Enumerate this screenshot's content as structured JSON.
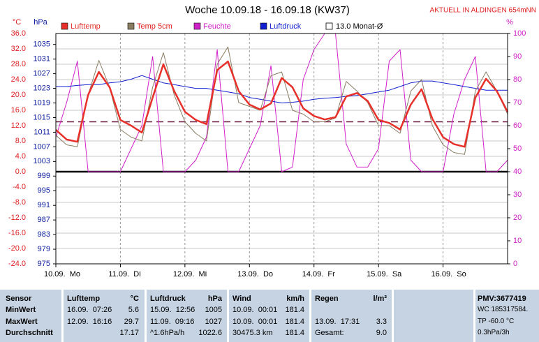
{
  "title": "Woche 10.09.18 - 16.09.18 (KW37)",
  "station": "AKTUELL IN ALDINGEN 654mNN",
  "chart_data": {
    "type": "line",
    "y_label": "°C",
    "y2_label": "hPa",
    "y3_label": "%",
    "x": [
      0,
      4,
      8,
      12,
      16,
      20,
      24,
      28,
      32,
      36,
      40,
      44,
      48,
      52,
      56,
      60,
      64,
      68,
      72,
      76,
      80,
      84,
      88,
      92,
      96,
      100,
      104,
      108,
      112,
      116,
      120,
      124,
      128,
      132,
      136,
      140,
      144,
      148,
      152,
      156,
      160,
      164,
      168
    ],
    "xlim": [
      0,
      168
    ],
    "xticks": [
      {
        "value": 0,
        "label": "10.09.  Mo"
      },
      {
        "value": 24,
        "label": "11.09.  Di"
      },
      {
        "value": 48,
        "label": "12.09.  Mi"
      },
      {
        "value": 72,
        "label": "13.09.  Do"
      },
      {
        "value": 96,
        "label": "14.09.  Fr"
      },
      {
        "value": 120,
        "label": "15.09.  Sa"
      },
      {
        "value": 144,
        "label": "16.09.  So"
      }
    ],
    "ylim": [
      -24,
      36
    ],
    "yticks": [
      {
        "value": 36,
        "label": "36.0"
      },
      {
        "value": 32,
        "label": "32.0"
      },
      {
        "value": 28,
        "label": "28.0"
      },
      {
        "value": 24,
        "label": "24.0"
      },
      {
        "value": 20,
        "label": "20.0"
      },
      {
        "value": 16,
        "label": "16.0"
      },
      {
        "value": 12,
        "label": "12.0"
      },
      {
        "value": 8,
        "label": "8.0"
      },
      {
        "value": 4,
        "label": "4.0"
      },
      {
        "value": 0,
        "label": "0.0"
      },
      {
        "value": -4,
        "label": "-4.0"
      },
      {
        "value": -8,
        "label": "-8.0"
      },
      {
        "value": -12,
        "label": "-12.0"
      },
      {
        "value": -16,
        "label": "-16.0"
      },
      {
        "value": -20,
        "label": "-20.0"
      },
      {
        "value": -24,
        "label": "-24.0"
      }
    ],
    "y2lim": [
      975,
      1038
    ],
    "y2ticks": [
      1035,
      1031,
      1027,
      1023,
      1019,
      1015,
      1011,
      1007,
      1003,
      999,
      995,
      991,
      987,
      983,
      979,
      975
    ],
    "y3lim": [
      0,
      100
    ],
    "y3ticks": [
      100,
      90,
      80,
      70,
      60,
      50,
      40,
      30,
      20,
      10,
      0
    ],
    "grid": true,
    "zero_line": 0,
    "reference_line": {
      "name": "13.0 Monat-Ø",
      "value": 13.0,
      "color": "#6b1840"
    },
    "series": [
      {
        "name": "Lufttemp",
        "color": "#e8302a",
        "axis": "y",
        "width": 2.5,
        "values": [
          10.9,
          8.4,
          7.8,
          20,
          26,
          22,
          13.5,
          12,
          10.2,
          19.3,
          28,
          21,
          15.6,
          13.5,
          12.4,
          26.5,
          28.7,
          21,
          17.5,
          16.2,
          17.8,
          24.4,
          22,
          16.5,
          14.5,
          13.6,
          14.2,
          19.6,
          20.5,
          18.4,
          13.5,
          12.7,
          11,
          17.5,
          21.5,
          13.8,
          9,
          7.2,
          6.5,
          19.3,
          24.2,
          21,
          15.6
        ]
      },
      {
        "name": "Temp 5cm",
        "color": "#8a7d62",
        "axis": "y",
        "width": 1,
        "values": [
          9.5,
          7,
          6.5,
          20,
          29,
          22,
          11,
          9,
          8,
          22,
          31,
          20,
          13,
          10,
          8,
          28,
          32.5,
          18,
          17,
          16,
          25,
          26,
          16,
          15,
          13,
          13,
          14,
          23.5,
          21,
          18,
          12,
          12,
          10,
          21,
          24,
          12,
          7,
          5,
          4.5,
          21,
          26,
          21,
          15
        ]
      },
      {
        "name": "Feuchte",
        "color": "#d020c8",
        "axis": "y3",
        "width": 1,
        "values": [
          55,
          70,
          88,
          40,
          40,
          40,
          40,
          50,
          60,
          90,
          40,
          40,
          40,
          45,
          55,
          93,
          40,
          40,
          50,
          60,
          86,
          40,
          42,
          80,
          93,
          100,
          100,
          52,
          42,
          42,
          50,
          88,
          93,
          45,
          40,
          40,
          40,
          65,
          80,
          90,
          40,
          40,
          45
        ]
      },
      {
        "name": "Luftdruck",
        "color": "#1020d0",
        "axis": "y2",
        "width": 1,
        "values": [
          1023.5,
          1023.5,
          1023.8,
          1024,
          1024,
          1024.5,
          1024.8,
          1025.5,
          1026.5,
          1025.5,
          1024.5,
          1024,
          1023.5,
          1023,
          1023,
          1022.5,
          1022,
          1021.5,
          1020.5,
          1020,
          1019.5,
          1019,
          1019.2,
          1019.5,
          1020,
          1020.3,
          1020.5,
          1020.8,
          1021,
          1021.5,
          1022,
          1022.5,
          1023.5,
          1024.5,
          1025,
          1025,
          1024.5,
          1024,
          1023.5,
          1023,
          1022.5,
          1022.5,
          1022.5
        ]
      }
    ]
  },
  "table": {
    "sensor_header": "Sensor",
    "columns": [
      {
        "name": "Lufttemp",
        "unit": "°C"
      },
      {
        "name": "Luftdruck",
        "unit": "hPa"
      },
      {
        "name": "Wind",
        "unit": "km/h"
      },
      {
        "name": "Regen",
        "unit": "l/m²"
      }
    ],
    "rows": [
      {
        "label": "MinWert",
        "cells": [
          [
            "16.09.  07:26",
            "5.6"
          ],
          [
            "15.09.  12:56",
            "1005"
          ],
          [
            "10.09.  00:01",
            "181.4"
          ],
          [
            null,
            null
          ]
        ]
      },
      {
        "label": "MaxWert",
        "cells": [
          [
            "12.09.  16:16",
            "29.7"
          ],
          [
            "11.09.  09:16",
            "1027"
          ],
          [
            "10.09.  00:01",
            "181.4"
          ],
          [
            "13.09.  17:31",
            "3.3"
          ]
        ]
      },
      {
        "label": "Durchschnitt",
        "cells": [
          [
            null,
            "17.17"
          ],
          [
            "^1.6hPa/h",
            "1022.6"
          ],
          [
            "30475.3 km",
            "181.4"
          ],
          [
            "Gesamt:",
            "9.0"
          ]
        ]
      }
    ],
    "info": [
      "PMV:3677419",
      "WC 185317584.",
      "TP -60.0 °C",
      "0.3hPa/3h"
    ]
  }
}
